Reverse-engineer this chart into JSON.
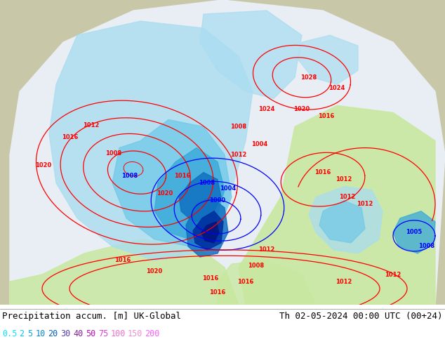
{
  "title_left": "Precipitation accum. [m] UK-Global",
  "title_right": "Th 02-05-2024 00:00 UTC (00+24)",
  "legend_items": [
    {
      "label": "0.5",
      "color": "#00ffff"
    },
    {
      "label": "2",
      "color": "#00d8ff"
    },
    {
      "label": "5",
      "color": "#00aaff"
    },
    {
      "label": "10",
      "color": "#0070ff"
    },
    {
      "label": "20",
      "color": "#0040ff"
    },
    {
      "label": "30",
      "color": "#8000ff"
    },
    {
      "label": "40",
      "color": "#cc00cc"
    },
    {
      "label": "50",
      "color": "#ff00aa"
    },
    {
      "label": "75",
      "color": "#ff4488"
    },
    {
      "label": "100",
      "color": "#ff88aa"
    },
    {
      "label": "150",
      "color": "#ffaacc"
    },
    {
      "label": "200",
      "color": "#ffccee"
    }
  ],
  "title_fontsize": 9,
  "legend_fontsize": 8.5,
  "fig_width": 6.34,
  "fig_height": 4.9,
  "dpi": 100,
  "outside_color": "#c8c8a8",
  "domain_white": "#e8eef4",
  "green_area": "#c8e8a0",
  "prec_lightest": "#aaddf0",
  "prec_light": "#70c8e8",
  "prec_mid": "#38a8d8",
  "prec_heavy": "#1070c0",
  "prec_vheavy": "#0030a0",
  "prec_core": "#001880"
}
